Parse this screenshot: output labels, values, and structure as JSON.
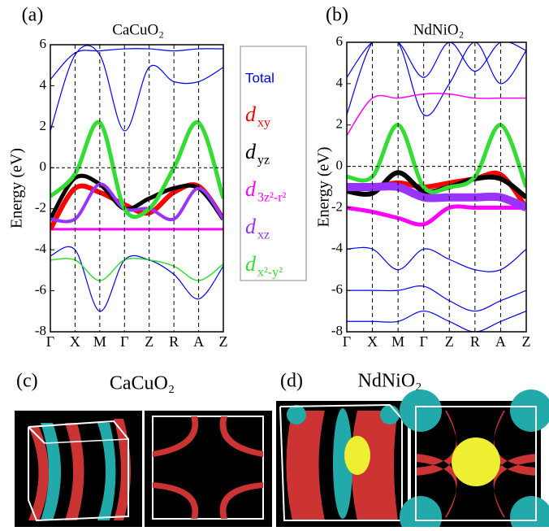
{
  "chart_data": [
    {
      "type": "line",
      "panel_label": "(a)",
      "title": "CaCuO₂",
      "ylabel": "Energy (eV)",
      "categories": [
        "Γ",
        "X",
        "M",
        "Γ",
        "Z",
        "R",
        "A",
        "Z"
      ],
      "ylim": [
        -8,
        6
      ],
      "yticks": [
        -8,
        -6,
        -4,
        -2,
        0,
        2,
        4,
        6
      ],
      "reference_line": 0,
      "series": [
        {
          "color": "#0000ff",
          "width": 1.2,
          "values": [
            4.3,
            5.6,
            5.7,
            5.8,
            5.8,
            5.7,
            5.8,
            5.8
          ]
        },
        {
          "color": "#0000ff",
          "width": 1.2,
          "values": [
            1.8,
            5.5,
            5.5,
            1.8,
            4.9,
            4.2,
            4.2,
            4.9
          ]
        },
        {
          "color": "#0000ff",
          "width": 1.2,
          "values": [
            -4.3,
            -4.0,
            -7.0,
            -4.5,
            -4.5,
            -5.2,
            -6.4,
            -4.8
          ]
        },
        {
          "color": "#33dd33",
          "width": 1.5,
          "values": [
            -4.5,
            -4.5,
            -5.5,
            -4.5,
            -4.5,
            -4.8,
            -5.5,
            -4.7
          ]
        },
        {
          "color": "#ff00ff",
          "width": 3,
          "values": [
            -3.0,
            -3.0,
            -3.0,
            -3.0,
            -3.0,
            -3.0,
            -3.0,
            -3.0
          ]
        },
        {
          "color": "#ff0000",
          "width": 6,
          "values": [
            -3.0,
            -1.0,
            -1.2,
            -1.8,
            -2.2,
            -1.2,
            -0.9,
            -2.5
          ]
        },
        {
          "color": "#000000",
          "width": 5,
          "values": [
            -2.5,
            -0.5,
            -0.8,
            -2.0,
            -1.5,
            -1.0,
            -1.0,
            -2.5
          ]
        },
        {
          "color": "#9933ff",
          "width": 4,
          "values": [
            -2.5,
            -2.5,
            -0.8,
            -2.0,
            -2.0,
            -2.5,
            -1.0,
            -2.5
          ]
        },
        {
          "color": "#33dd33",
          "width": 5,
          "values": [
            -1.4,
            -0.3,
            2.2,
            -2.0,
            -2.0,
            0.0,
            2.2,
            -1.5
          ]
        }
      ]
    },
    {
      "type": "line",
      "panel_label": "(b)",
      "title": "NdNiO₂",
      "ylabel": "Energy (eV)",
      "categories": [
        "Γ",
        "X",
        "M",
        "Γ",
        "Z",
        "R",
        "A",
        "Z"
      ],
      "ylim": [
        -8,
        6
      ],
      "yticks": [
        -8,
        -6,
        -4,
        -2,
        0,
        2,
        4,
        6
      ],
      "reference_line": 0,
      "series": [
        {
          "color": "#0000ff",
          "width": 1.2,
          "values": [
            4.3,
            6.0,
            6.0,
            4.3,
            6.0,
            4.6,
            6.0,
            5.6
          ]
        },
        {
          "color": "#0000ff",
          "width": 1.2,
          "values": [
            2.5,
            6.0,
            6.0,
            2.5,
            4.0,
            6.0,
            4.0,
            5.6
          ]
        },
        {
          "color": "#ff00ff",
          "width": 1.5,
          "values": [
            1.5,
            3.3,
            3.3,
            3.5,
            3.5,
            3.3,
            3.3,
            3.3
          ]
        },
        {
          "color": "#0000ff",
          "width": 1.2,
          "values": [
            -4.0,
            -4.0,
            -5.0,
            -4.0,
            -4.5,
            -5.0,
            -5.0,
            -4.0
          ]
        },
        {
          "color": "#0000ff",
          "width": 1.2,
          "values": [
            -6.0,
            -6.0,
            -6.0,
            -5.8,
            -6.5,
            -7.0,
            -6.5,
            -6.0
          ]
        },
        {
          "color": "#0000ff",
          "width": 1.2,
          "values": [
            -7.5,
            -7.5,
            -7.5,
            -7.0,
            -7.5,
            -8.0,
            -7.5,
            -7.0
          ]
        },
        {
          "color": "#ff00ff",
          "width": 5,
          "values": [
            -2.0,
            -2.2,
            -2.5,
            -2.8,
            -2.0,
            -2.0,
            -2.0,
            -2.0
          ]
        },
        {
          "color": "#ff0000",
          "width": 6,
          "values": [
            -1.0,
            -1.0,
            -0.8,
            -1.0,
            -0.8,
            -0.6,
            -0.4,
            -2.0
          ]
        },
        {
          "color": "#000000",
          "width": 6,
          "values": [
            -1.2,
            -1.3,
            -0.3,
            -1.2,
            -1.0,
            -0.6,
            -0.6,
            -1.5
          ]
        },
        {
          "color": "#9933ff",
          "width": 10,
          "values": [
            -1.0,
            -1.0,
            -1.0,
            -1.5,
            -1.5,
            -1.5,
            -1.5,
            -2.0
          ]
        },
        {
          "color": "#33dd33",
          "width": 5,
          "values": [
            -0.5,
            -0.5,
            2.0,
            -1.0,
            -1.0,
            -0.5,
            2.0,
            -1.0
          ]
        }
      ]
    }
  ],
  "legend": {
    "entries": [
      {
        "text": "Total",
        "color": "#0000ff"
      },
      {
        "symbol": "d",
        "subscript": "xy",
        "color": "#ff0000"
      },
      {
        "symbol": "d",
        "subscript": "yz",
        "color": "#000000"
      },
      {
        "symbol": "d",
        "subscript": "3z²-r²",
        "color": "#ff00ff"
      },
      {
        "symbol": "d",
        "subscript": "xz",
        "color": "#9933ff"
      },
      {
        "symbol": "d",
        "subscript": "x²-y²",
        "color": "#33dd33"
      }
    ]
  },
  "fermi_surfaces": [
    {
      "label": "(c)",
      "title": "CaCuO₂"
    },
    {
      "label": "(d)",
      "title": "NdNiO₂"
    }
  ]
}
